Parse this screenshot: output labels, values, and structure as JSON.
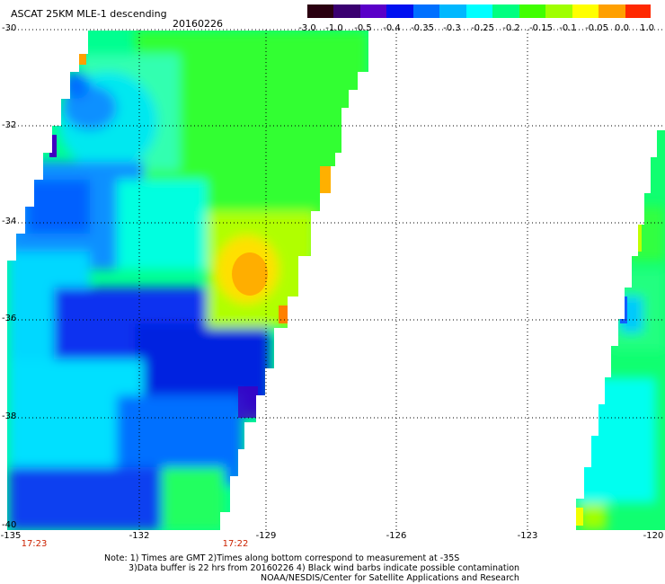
{
  "header": {
    "title": "ASCAT 25KM MLE-1 descending",
    "date": "20160226"
  },
  "colorbar": {
    "ticks": [
      "-3.0",
      "-1.0",
      "-0.5",
      "-0.4",
      "-0.35",
      "-0.3",
      "-0.25",
      "-0.2",
      "-0.15",
      "-0.1",
      "-0.05",
      "0.0",
      "1.0"
    ],
    "colors": [
      "#2a0010",
      "#3a0070",
      "#5a00c8",
      "#0010f0",
      "#0070ff",
      "#00b8ff",
      "#00ffff",
      "#00ff80",
      "#40ff00",
      "#a0ff00",
      "#ffff00",
      "#ffa000",
      "#ff2800"
    ]
  },
  "axes": {
    "lat_labels": [
      "-30",
      "-32",
      "-34",
      "-36",
      "-38",
      "-40"
    ],
    "lon_labels": [
      "-135",
      "-132",
      "-129",
      "-126",
      "-123",
      "-120"
    ],
    "time_labels": [
      "17:23",
      "17:22"
    ]
  },
  "notes": {
    "line1": "Note: 1) Times are GMT 2)Times along bottom correspond to measurement at -35S",
    "line2": "3)Data buffer is 22 hrs from 20160226 4) Black wind barbs indicate possible contamination",
    "line3": "NOAA/NESDIS/Center for Satellite Applications and Research"
  },
  "map": {
    "grid": "dotted",
    "swaths": 2
  }
}
